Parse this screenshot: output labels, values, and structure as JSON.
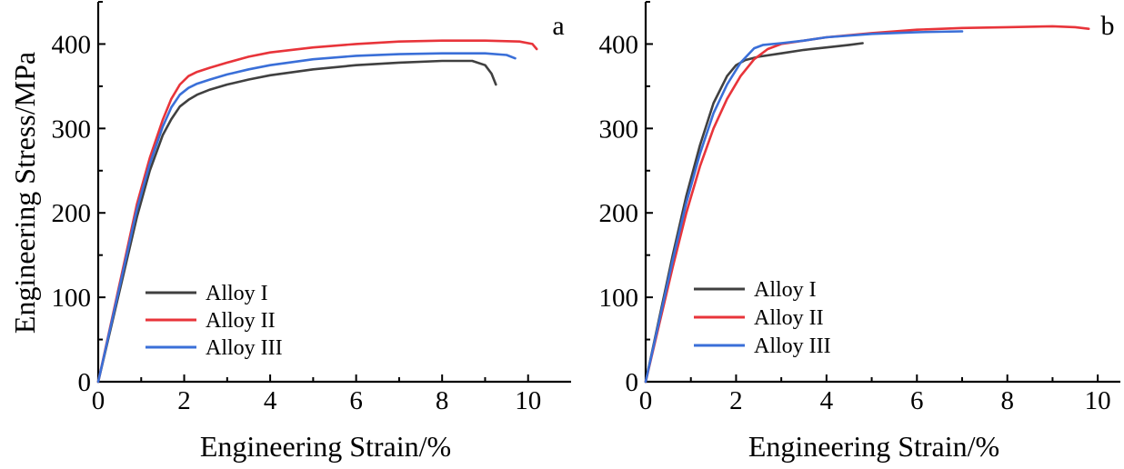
{
  "figure": {
    "ylabel": "Engineering Stress/MPa"
  },
  "chart_data": [
    {
      "type": "line",
      "panel_label": "a",
      "xlabel": "Engineering Strain/%",
      "ylabel": "Engineering Stress/MPa",
      "xlim": [
        0,
        11
      ],
      "ylim": [
        0,
        450
      ],
      "xticks": [
        0,
        2,
        4,
        6,
        8,
        10
      ],
      "yticks": [
        0,
        100,
        200,
        300,
        400
      ],
      "grid": false,
      "legend_position": "lower-left",
      "series": [
        {
          "name": "Alloy I",
          "color": "#404040",
          "x": [
            0,
            0.3,
            0.6,
            0.9,
            1.2,
            1.5,
            1.7,
            1.9,
            2.1,
            2.3,
            2.6,
            3,
            3.5,
            4,
            5,
            6,
            7,
            8,
            8.7,
            9,
            9.15,
            9.25
          ],
          "y": [
            0,
            65,
            130,
            195,
            250,
            292,
            311,
            326,
            334,
            340,
            346,
            352,
            358,
            363,
            370,
            375,
            378,
            380,
            380,
            375,
            365,
            352
          ]
        },
        {
          "name": "Alloy II",
          "color": "#e8343a",
          "x": [
            0,
            0.3,
            0.6,
            0.9,
            1.2,
            1.5,
            1.7,
            1.9,
            2.1,
            2.3,
            2.6,
            3,
            3.5,
            4,
            5,
            6,
            7,
            8,
            9,
            9.8,
            10.1,
            10.2
          ],
          "y": [
            0,
            70,
            140,
            210,
            265,
            310,
            335,
            352,
            362,
            367,
            372,
            378,
            385,
            390,
            396,
            400,
            403,
            404,
            404,
            403,
            400,
            394
          ]
        },
        {
          "name": "Alloy III",
          "color": "#3a6fd8",
          "x": [
            0,
            0.3,
            0.6,
            0.9,
            1.2,
            1.5,
            1.7,
            1.9,
            2.1,
            2.3,
            2.6,
            3,
            3.5,
            4,
            5,
            6,
            7,
            8,
            9,
            9.5,
            9.7
          ],
          "y": [
            0,
            68,
            136,
            204,
            258,
            302,
            325,
            340,
            348,
            353,
            358,
            364,
            370,
            375,
            382,
            386,
            388,
            389,
            389,
            387,
            383
          ]
        }
      ]
    },
    {
      "type": "line",
      "panel_label": "b",
      "xlabel": "Engineering Strain/%",
      "ylabel": "",
      "xlim": [
        0,
        10.5
      ],
      "ylim": [
        0,
        450
      ],
      "xticks": [
        0,
        2,
        4,
        6,
        8,
        10
      ],
      "yticks": [
        0,
        100,
        200,
        300,
        400
      ],
      "grid": false,
      "legend_position": "lower-left",
      "series": [
        {
          "name": "Alloy I",
          "color": "#404040",
          "x": [
            0,
            0.3,
            0.6,
            0.9,
            1.2,
            1.5,
            1.8,
            2,
            2.2,
            2.5,
            3,
            3.5,
            4,
            4.5,
            4.8
          ],
          "y": [
            0,
            75,
            150,
            220,
            280,
            330,
            362,
            375,
            381,
            385,
            389,
            393,
            396,
            399,
            401
          ]
        },
        {
          "name": "Alloy II",
          "color": "#e8343a",
          "x": [
            0,
            0.3,
            0.6,
            0.9,
            1.2,
            1.5,
            1.8,
            2.1,
            2.4,
            2.7,
            3,
            3.5,
            4,
            5,
            6,
            7,
            8,
            9,
            9.5,
            9.8
          ],
          "y": [
            0,
            68,
            136,
            200,
            255,
            300,
            335,
            362,
            382,
            394,
            400,
            404,
            408,
            413,
            417,
            419,
            420,
            421,
            420,
            418
          ]
        },
        {
          "name": "Alloy III",
          "color": "#3a6fd8",
          "x": [
            0,
            0.3,
            0.6,
            0.9,
            1.2,
            1.5,
            1.8,
            2.1,
            2.4,
            2.6,
            3,
            3.5,
            4,
            5,
            6,
            7
          ],
          "y": [
            0,
            72,
            144,
            212,
            270,
            318,
            352,
            378,
            395,
            399,
            401,
            404,
            408,
            412,
            414,
            415
          ]
        }
      ]
    }
  ]
}
